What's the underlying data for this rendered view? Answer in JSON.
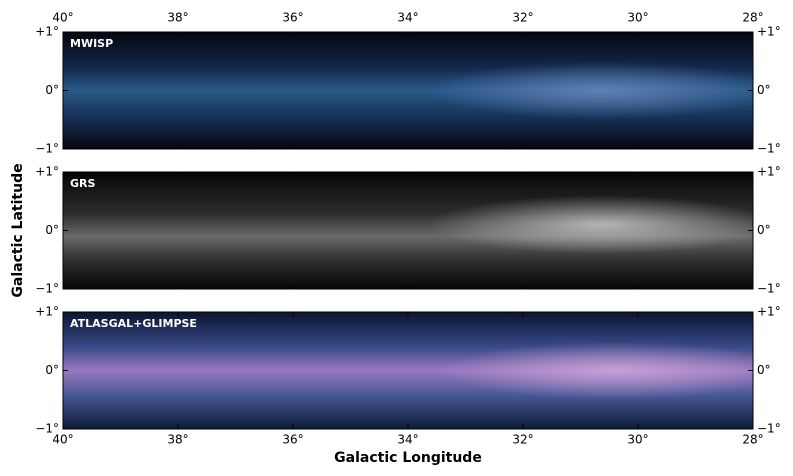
{
  "chart_data": [
    {
      "type": "image",
      "title": "MWISP",
      "palette": "mwisp",
      "xlim": [
        40,
        28
      ],
      "ylim": [
        -1,
        1
      ],
      "xticks": [
        {
          "value": 40,
          "label": "40°"
        },
        {
          "value": 38,
          "label": "38°"
        },
        {
          "value": 36,
          "label": "36°"
        },
        {
          "value": 34,
          "label": "34°"
        },
        {
          "value": 32,
          "label": "32°"
        },
        {
          "value": 30,
          "label": "30°"
        },
        {
          "value": 28,
          "label": "28°"
        }
      ],
      "xtick_side": "top",
      "yticks": [
        {
          "value": 1,
          "label": "+1°"
        },
        {
          "value": 0,
          "label": "0°"
        },
        {
          "value": -1,
          "label": "−1°"
        }
      ]
    },
    {
      "type": "image",
      "title": "GRS",
      "palette": "grs",
      "xlim": [
        40,
        28
      ],
      "ylim": [
        -1,
        1
      ],
      "ylabel": "Galactic Latitude",
      "yticks": [
        {
          "value": 1,
          "label": "+1°"
        },
        {
          "value": 0,
          "label": "0°"
        },
        {
          "value": -1,
          "label": "−1°"
        }
      ]
    },
    {
      "type": "image",
      "title": "ATLASGAL+GLIMPSE",
      "palette": "atlas",
      "xlim": [
        40,
        28
      ],
      "ylim": [
        -1,
        1
      ],
      "xticks": [
        {
          "value": 40,
          "label": "40°"
        },
        {
          "value": 38,
          "label": "38°"
        },
        {
          "value": 36,
          "label": "36°"
        },
        {
          "value": 34,
          "label": "34°"
        },
        {
          "value": 32,
          "label": "32°"
        },
        {
          "value": 30,
          "label": "30°"
        },
        {
          "value": 28,
          "label": "28°"
        }
      ],
      "xtick_side": "bottom",
      "xlabel": "Galactic Longitude",
      "yticks": [
        {
          "value": 1,
          "label": "+1°"
        },
        {
          "value": 0,
          "label": "0°"
        },
        {
          "value": -1,
          "label": "−1°"
        }
      ]
    }
  ]
}
